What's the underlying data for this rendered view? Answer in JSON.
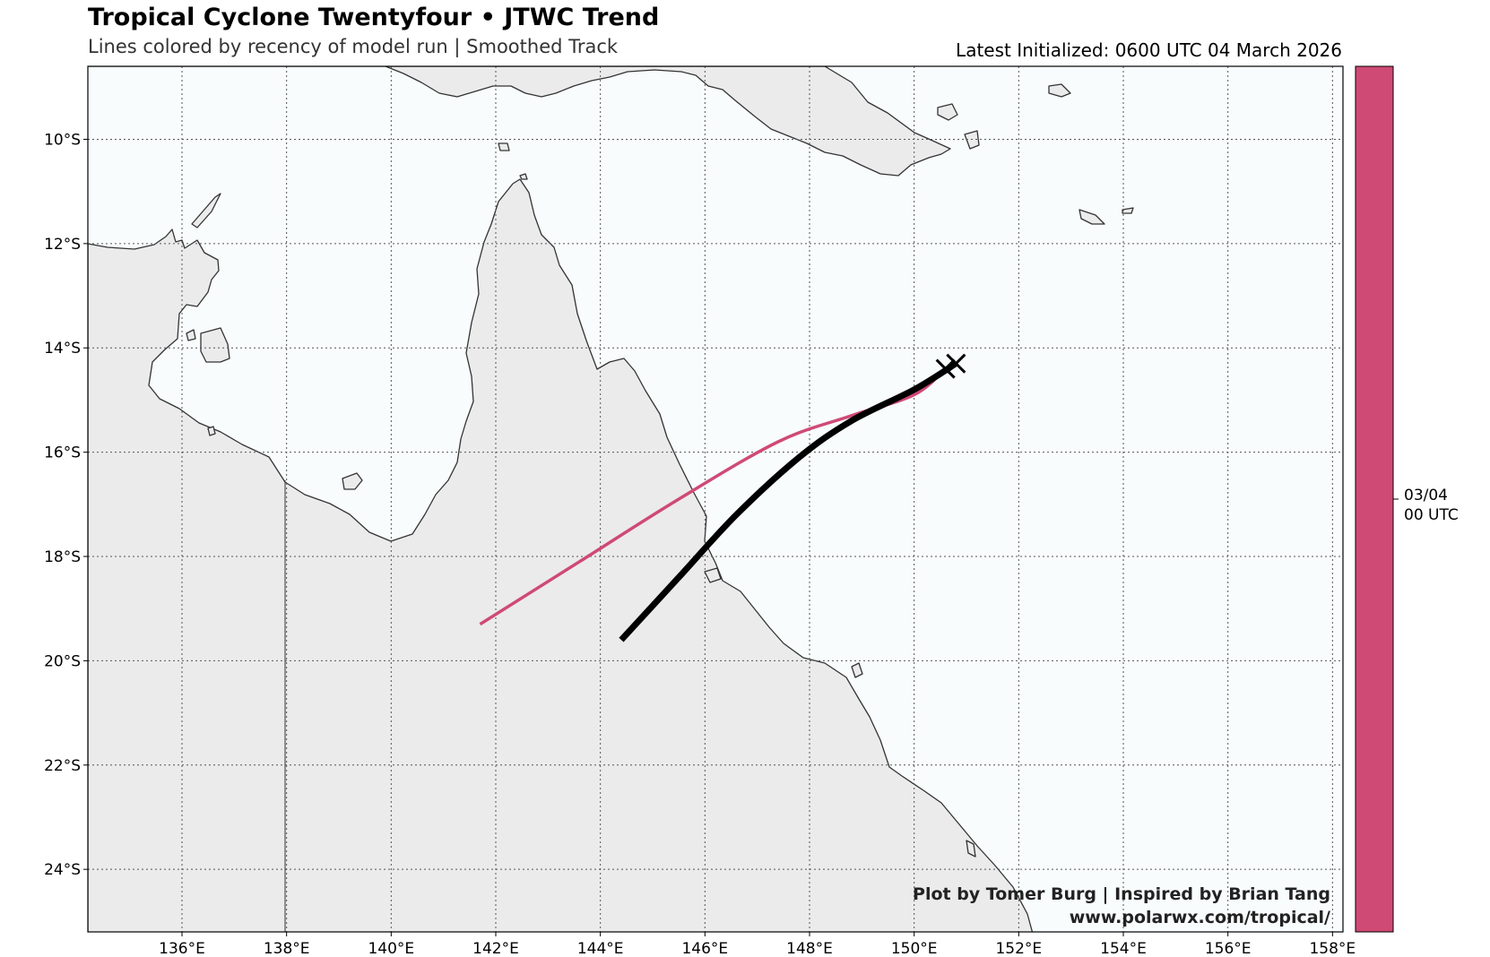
{
  "title": "Tropical Cyclone Twentyfour • JTWC Trend",
  "subtitle": "Lines colored by recency of model run | Smoothed Track",
  "latest_initialized": "Latest Initialized: 0600 UTC 04 March 2026",
  "credits": {
    "line1": "Plot by Tomer Burg | Inspired by Brian Tang",
    "line2": "www.polarwx.com/tropical/"
  },
  "map": {
    "lon_range": [
      134.2,
      158.2
    ],
    "lat_range": [
      -25.2,
      -8.6
    ],
    "lon_ticks": [
      "136°E",
      "138°E",
      "140°E",
      "142°E",
      "144°E",
      "146°E",
      "148°E",
      "150°E",
      "152°E",
      "154°E",
      "156°E",
      "158°E"
    ],
    "lat_ticks": [
      "10°S",
      "12°S",
      "14°S",
      "16°S",
      "18°S",
      "20°S",
      "22°S",
      "24°S"
    ],
    "grid": true,
    "ocean_color": "#f8fcfd",
    "land_color": "#ebebeb",
    "coast_color": "#333333"
  },
  "tracks": [
    {
      "color": "#cf4a75",
      "points": [
        [
          150.6,
          -14.4
        ],
        [
          150.0,
          -14.9
        ],
        [
          148.8,
          -15.3
        ],
        [
          147.4,
          -15.8
        ],
        [
          145.5,
          -16.9
        ],
        [
          143.6,
          -18.1
        ],
        [
          141.7,
          -19.3
        ]
      ]
    },
    {
      "color": "#000000",
      "points": [
        [
          150.8,
          -14.3
        ],
        [
          150.0,
          -14.8
        ],
        [
          148.8,
          -15.4
        ],
        [
          147.8,
          -16.1
        ],
        [
          146.6,
          -17.2
        ],
        [
          145.5,
          -18.4
        ],
        [
          144.4,
          -19.6
        ]
      ]
    }
  ],
  "colorbar": {
    "color": "#cf4a75",
    "tick_label_line1": "03/04",
    "tick_label_line2": "00 UTC"
  }
}
